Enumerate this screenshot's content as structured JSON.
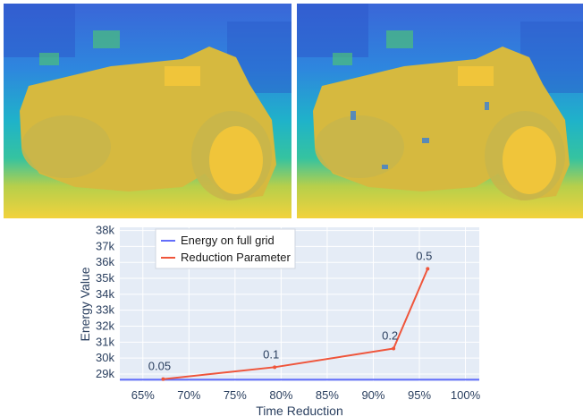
{
  "images": [
    {
      "name": "disparity-map-left",
      "subject": "motorcycle disparity map (full grid)",
      "colormap": "viridis"
    },
    {
      "name": "disparity-map-right",
      "subject": "motorcycle disparity map (reduced)",
      "colormap": "viridis"
    }
  ],
  "colors": {
    "full_grid": "#636efa",
    "reduction": "#ef553b",
    "plot_bg": "#e5ecf6",
    "grid": "#ffffff"
  },
  "chart_data": {
    "type": "line",
    "xlabel": "Time Reduction",
    "ylabel": "Energy Value",
    "x_ticks": [
      "65%",
      "70%",
      "75%",
      "80%",
      "85%",
      "90%",
      "95%",
      "100%"
    ],
    "x_tick_values": [
      65,
      70,
      75,
      80,
      85,
      90,
      95,
      100
    ],
    "y_ticks": [
      "29k",
      "30k",
      "31k",
      "32k",
      "33k",
      "34k",
      "35k",
      "36k",
      "37k",
      "38k"
    ],
    "y_tick_values": [
      29000,
      30000,
      31000,
      32000,
      33000,
      34000,
      35000,
      36000,
      37000,
      38000
    ],
    "xlim": [
      62.5,
      101.5
    ],
    "ylim": [
      28550,
      38200
    ],
    "grid": true,
    "legend": {
      "placement": "top-left"
    },
    "series": [
      {
        "name": "Energy on full grid",
        "x": [
          62.5,
          101.5
        ],
        "y": [
          28650,
          28650
        ]
      },
      {
        "name": "Reduction Parameter",
        "x": [
          67.2,
          79.3,
          92.2,
          95.9
        ],
        "y": [
          28680,
          29430,
          30600,
          35600
        ],
        "point_labels": [
          "0.05",
          "0.1",
          "0.2",
          "0.5"
        ]
      }
    ]
  }
}
